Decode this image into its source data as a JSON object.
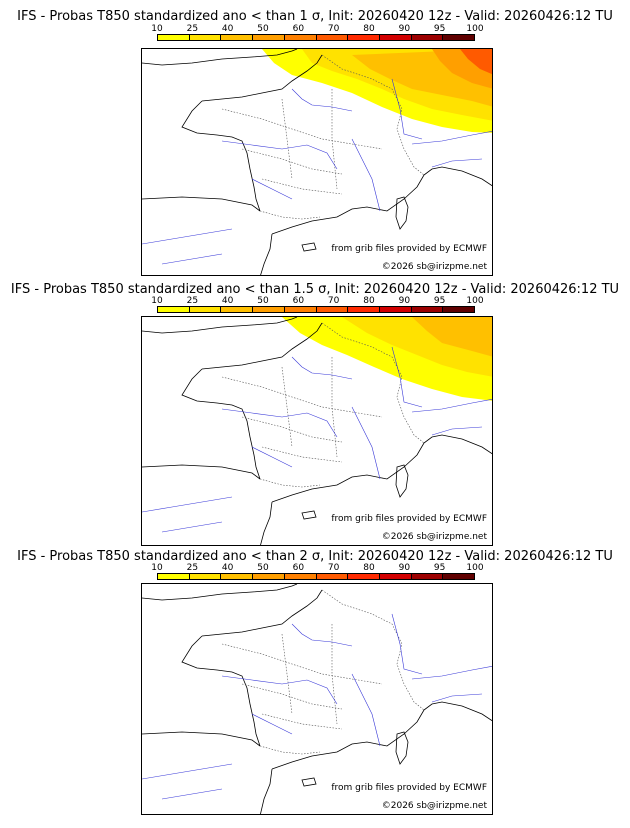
{
  "colorbar": {
    "labels": [
      "10",
      "25",
      "40",
      "50",
      "60",
      "70",
      "80",
      "90",
      "95",
      "100"
    ],
    "colors": [
      "#ffff00",
      "#ffe200",
      "#ffc000",
      "#ff9f00",
      "#ff8000",
      "#ff5a00",
      "#ff2a00",
      "#d20000",
      "#9c0000",
      "#600000"
    ]
  },
  "panels": [
    {
      "title": "IFS - Probas T850  standardized ano < than 1 σ, Init: 20260420 12z - Valid: 20260426:12 TU",
      "credit_source": "from grib files provided by ECMWF",
      "credit_copyright": "©2026 sb@irizpme.net"
    },
    {
      "title": "IFS - Probas T850  standardized ano < than 1.5 σ, Init: 20260420 12z - Valid: 20260426:12 TU",
      "credit_source": "from grib files provided by ECMWF",
      "credit_copyright": "©2026 sb@irizpme.net"
    },
    {
      "title": "IFS - Probas T850  standardized ano < than 2 σ, Init: 20260420 12z - Valid: 20260426:12 TU",
      "credit_source": "from grib files provided by ECMWF",
      "credit_copyright": "©2026 sb@irizpme.net"
    }
  ]
}
